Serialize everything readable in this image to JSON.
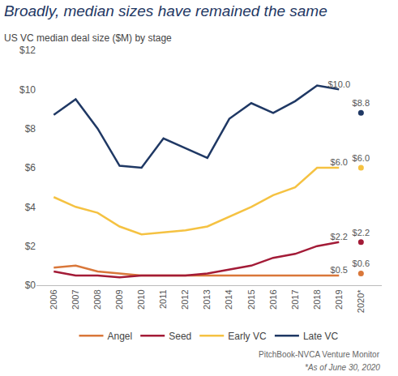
{
  "chart_data": {
    "type": "line",
    "title": "Broadly, median sizes have remained the same",
    "subtitle": "US VC median deal size ($M) by stage",
    "annotations": [
      "PitchBook-NVCA Venture Monitor",
      "*As of June 30, 2020"
    ],
    "categories": [
      "2006",
      "2007",
      "2008",
      "2009",
      "2010",
      "2011",
      "2012",
      "2013",
      "2014",
      "2015",
      "2016",
      "2017",
      "2018",
      "2019",
      "2020*"
    ],
    "series": [
      {
        "name": "Angel",
        "color": "#d9773a",
        "values": [
          0.9,
          1.0,
          0.7,
          0.6,
          0.5,
          0.5,
          0.5,
          0.5,
          0.5,
          0.5,
          0.5,
          0.5,
          0.5,
          0.5,
          0.6
        ],
        "value_labels": [
          null,
          null,
          null,
          null,
          null,
          null,
          null,
          null,
          null,
          null,
          null,
          null,
          null,
          "$0.5",
          "$0.6"
        ]
      },
      {
        "name": "Seed",
        "color": "#a31b37",
        "values": [
          0.7,
          0.5,
          0.5,
          0.4,
          0.5,
          0.5,
          0.5,
          0.6,
          0.8,
          1.0,
          1.4,
          1.6,
          2.0,
          2.2,
          2.2
        ],
        "value_labels": [
          null,
          null,
          null,
          null,
          null,
          null,
          null,
          null,
          null,
          null,
          null,
          null,
          null,
          "$2.2",
          "$2.2"
        ]
      },
      {
        "name": "Early VC",
        "color": "#f5c242",
        "values": [
          4.5,
          4.0,
          3.7,
          3.0,
          2.6,
          2.7,
          2.8,
          3.0,
          3.5,
          4.0,
          4.6,
          5.0,
          6.0,
          6.0,
          6.0
        ],
        "value_labels": [
          null,
          null,
          null,
          null,
          null,
          null,
          null,
          null,
          null,
          null,
          null,
          null,
          null,
          "$6.0",
          "$6.0"
        ]
      },
      {
        "name": "Late VC",
        "color": "#1f3864",
        "values": [
          8.7,
          9.5,
          8.0,
          6.1,
          6.0,
          7.5,
          7.0,
          6.5,
          8.5,
          9.3,
          8.8,
          9.4,
          10.2,
          10.0,
          8.8
        ],
        "value_labels": [
          null,
          null,
          null,
          null,
          null,
          null,
          null,
          null,
          null,
          null,
          null,
          null,
          null,
          "$10.0",
          "$8.8"
        ]
      }
    ],
    "ylim": [
      0,
      12
    ],
    "yticks": [
      {
        "value": 0,
        "label": "$0"
      },
      {
        "value": 2,
        "label": "$2"
      },
      {
        "value": 4,
        "label": "$4"
      },
      {
        "value": 6,
        "label": "$6"
      },
      {
        "value": 8,
        "label": "$8"
      },
      {
        "value": 10,
        "label": "$10"
      },
      {
        "value": 12,
        "label": "$12"
      }
    ],
    "grid": false,
    "legend": "bottom",
    "data_labels": true
  }
}
